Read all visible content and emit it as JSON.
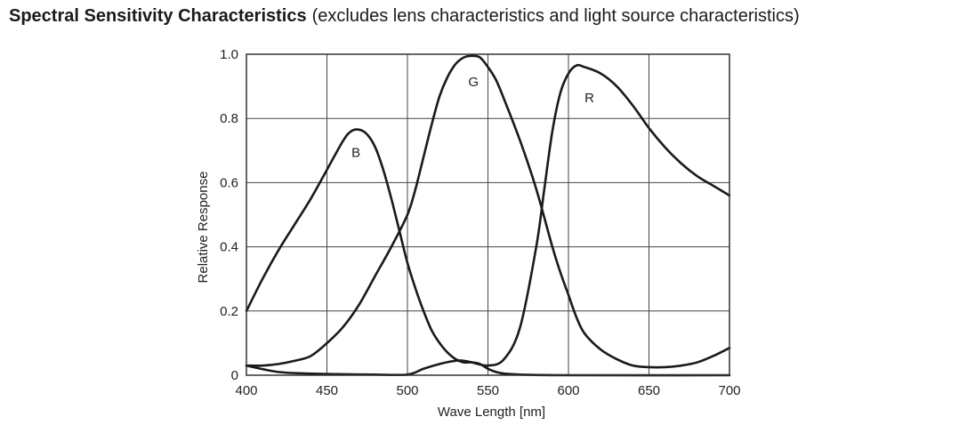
{
  "page": {
    "title": "Spectral Sensitivity Characteristics",
    "subtitle": "(excludes lens characteristics and light source characteristics)"
  },
  "chart_data": {
    "type": "line",
    "xlabel": "Wave Length [nm]",
    "ylabel": "Relative Response",
    "xlim": [
      400,
      700
    ],
    "ylim": [
      0,
      1.0
    ],
    "x_ticks": [
      400,
      450,
      500,
      550,
      600,
      650,
      700
    ],
    "x_tick_labels": [
      "400",
      "450",
      "500",
      "550",
      "600",
      "650",
      "700"
    ],
    "y_ticks": [
      0,
      0.2,
      0.4,
      0.6,
      0.8,
      1.0
    ],
    "y_tick_labels": [
      "0",
      "0.2",
      "0.4",
      "0.6",
      "0.8",
      "1.0"
    ],
    "grid": true,
    "line_color": "#1a1a1a",
    "series": [
      {
        "name": "B",
        "label_at": [
          468,
          0.68
        ],
        "points": [
          [
            400,
            0.2
          ],
          [
            410,
            0.3
          ],
          [
            420,
            0.39
          ],
          [
            430,
            0.47
          ],
          [
            440,
            0.55
          ],
          [
            450,
            0.64
          ],
          [
            460,
            0.73
          ],
          [
            465,
            0.76
          ],
          [
            470,
            0.765
          ],
          [
            475,
            0.75
          ],
          [
            480,
            0.71
          ],
          [
            485,
            0.64
          ],
          [
            490,
            0.55
          ],
          [
            495,
            0.45
          ],
          [
            500,
            0.35
          ],
          [
            505,
            0.27
          ],
          [
            510,
            0.2
          ],
          [
            515,
            0.14
          ],
          [
            520,
            0.1
          ],
          [
            525,
            0.07
          ],
          [
            530,
            0.05
          ],
          [
            535,
            0.04
          ],
          [
            540,
            0.04
          ],
          [
            545,
            0.035
          ],
          [
            550,
            0.02
          ],
          [
            555,
            0.01
          ],
          [
            560,
            0.005
          ],
          [
            570,
            0.002
          ],
          [
            600,
            0.0
          ],
          [
            700,
            0.0
          ]
        ]
      },
      {
        "name": "G",
        "label_at": [
          541,
          0.9
        ],
        "points": [
          [
            400,
            0.03
          ],
          [
            410,
            0.03
          ],
          [
            420,
            0.035
          ],
          [
            430,
            0.045
          ],
          [
            440,
            0.06
          ],
          [
            450,
            0.1
          ],
          [
            460,
            0.15
          ],
          [
            470,
            0.22
          ],
          [
            480,
            0.31
          ],
          [
            490,
            0.4
          ],
          [
            500,
            0.5
          ],
          [
            505,
            0.58
          ],
          [
            510,
            0.68
          ],
          [
            515,
            0.78
          ],
          [
            520,
            0.87
          ],
          [
            525,
            0.93
          ],
          [
            530,
            0.97
          ],
          [
            535,
            0.99
          ],
          [
            540,
            0.995
          ],
          [
            545,
            0.99
          ],
          [
            550,
            0.96
          ],
          [
            555,
            0.92
          ],
          [
            560,
            0.86
          ],
          [
            570,
            0.73
          ],
          [
            580,
            0.58
          ],
          [
            590,
            0.4
          ],
          [
            595,
            0.32
          ],
          [
            600,
            0.25
          ],
          [
            605,
            0.18
          ],
          [
            610,
            0.13
          ],
          [
            620,
            0.08
          ],
          [
            630,
            0.05
          ],
          [
            640,
            0.03
          ],
          [
            650,
            0.025
          ],
          [
            660,
            0.025
          ],
          [
            670,
            0.03
          ],
          [
            680,
            0.04
          ],
          [
            690,
            0.06
          ],
          [
            700,
            0.085
          ]
        ]
      },
      {
        "name": "R",
        "label_at": [
          613,
          0.85
        ],
        "points": [
          [
            400,
            0.03
          ],
          [
            420,
            0.01
          ],
          [
            440,
            0.005
          ],
          [
            460,
            0.003
          ],
          [
            480,
            0.002
          ],
          [
            500,
            0.002
          ],
          [
            510,
            0.02
          ],
          [
            520,
            0.035
          ],
          [
            530,
            0.045
          ],
          [
            535,
            0.045
          ],
          [
            540,
            0.04
          ],
          [
            550,
            0.03
          ],
          [
            560,
            0.05
          ],
          [
            570,
            0.15
          ],
          [
            580,
            0.4
          ],
          [
            585,
            0.58
          ],
          [
            590,
            0.76
          ],
          [
            595,
            0.88
          ],
          [
            600,
            0.94
          ],
          [
            605,
            0.965
          ],
          [
            610,
            0.96
          ],
          [
            620,
            0.94
          ],
          [
            630,
            0.9
          ],
          [
            640,
            0.84
          ],
          [
            650,
            0.77
          ],
          [
            660,
            0.71
          ],
          [
            670,
            0.66
          ],
          [
            680,
            0.62
          ],
          [
            690,
            0.59
          ],
          [
            700,
            0.56
          ]
        ]
      }
    ]
  }
}
